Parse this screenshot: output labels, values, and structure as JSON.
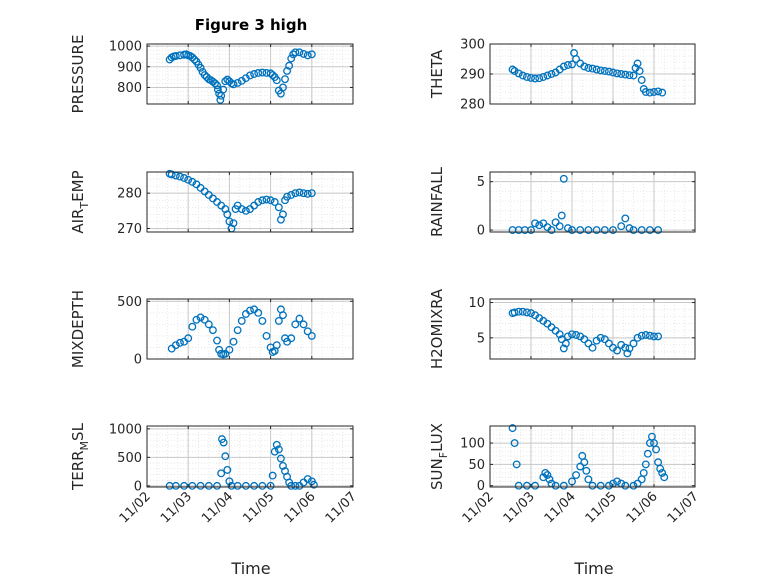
{
  "figure": {
    "title": "Figure 3 high",
    "xlabel": "Time"
  },
  "colors": {
    "marker": "#0072bd",
    "axis": "#262626",
    "grid": "#c8c8c8"
  },
  "xaxis": {
    "ticks": [
      "11/02",
      "11/03",
      "11/04",
      "11/05",
      "11/06",
      "11/07"
    ],
    "xlim": [
      0,
      5
    ]
  },
  "chart_data": [
    {
      "type": "scatter",
      "title": "Figure 3 high",
      "ylabel": "PRESSURE",
      "ylabel_sub": "",
      "ylabel_suffix": "",
      "ylim": [
        720,
        1010
      ],
      "yticks": [
        800,
        900,
        1000
      ],
      "grid": true,
      "points": [
        [
          0.55,
          935
        ],
        [
          0.6,
          945
        ],
        [
          0.65,
          950
        ],
        [
          0.7,
          952
        ],
        [
          0.8,
          955
        ],
        [
          0.9,
          958
        ],
        [
          0.95,
          960
        ],
        [
          1.0,
          955
        ],
        [
          1.05,
          952
        ],
        [
          1.1,
          945
        ],
        [
          1.15,
          935
        ],
        [
          1.2,
          925
        ],
        [
          1.25,
          910
        ],
        [
          1.3,
          895
        ],
        [
          1.35,
          875
        ],
        [
          1.4,
          860
        ],
        [
          1.45,
          850
        ],
        [
          1.5,
          840
        ],
        [
          1.55,
          835
        ],
        [
          1.6,
          828
        ],
        [
          1.65,
          820
        ],
        [
          1.7,
          810
        ],
        [
          1.72,
          790
        ],
        [
          1.75,
          770
        ],
        [
          1.78,
          740
        ],
        [
          1.8,
          760
        ],
        [
          1.85,
          790
        ],
        [
          1.9,
          830
        ],
        [
          1.95,
          838
        ],
        [
          2.0,
          830
        ],
        [
          2.05,
          820
        ],
        [
          2.1,
          815
        ],
        [
          2.2,
          822
        ],
        [
          2.3,
          832
        ],
        [
          2.4,
          845
        ],
        [
          2.5,
          858
        ],
        [
          2.6,
          865
        ],
        [
          2.7,
          870
        ],
        [
          2.8,
          872
        ],
        [
          2.9,
          870
        ],
        [
          3.0,
          868
        ],
        [
          3.05,
          860
        ],
        [
          3.1,
          850
        ],
        [
          3.15,
          835
        ],
        [
          3.2,
          785
        ],
        [
          3.25,
          770
        ],
        [
          3.3,
          800
        ],
        [
          3.35,
          840
        ],
        [
          3.4,
          880
        ],
        [
          3.45,
          905
        ],
        [
          3.5,
          940
        ],
        [
          3.55,
          960
        ],
        [
          3.6,
          970
        ],
        [
          3.7,
          970
        ],
        [
          3.8,
          962
        ],
        [
          3.9,
          955
        ],
        [
          4.0,
          960
        ]
      ]
    },
    {
      "type": "scatter",
      "ylabel": "THETA",
      "ylabel_sub": "",
      "ylabel_suffix": "",
      "ylim": [
        280,
        300
      ],
      "yticks": [
        280,
        290,
        300
      ],
      "grid": true,
      "points": [
        [
          0.55,
          291.5
        ],
        [
          0.6,
          291
        ],
        [
          0.7,
          290.2
        ],
        [
          0.8,
          289.5
        ],
        [
          0.9,
          289
        ],
        [
          1.0,
          288.7
        ],
        [
          1.1,
          288.5
        ],
        [
          1.2,
          288.6
        ],
        [
          1.3,
          289
        ],
        [
          1.4,
          289.5
        ],
        [
          1.5,
          290
        ],
        [
          1.6,
          290.5
        ],
        [
          1.7,
          291.5
        ],
        [
          1.8,
          292.5
        ],
        [
          1.9,
          293
        ],
        [
          2.0,
          293.2
        ],
        [
          2.05,
          297
        ],
        [
          2.1,
          295
        ],
        [
          2.2,
          293.5
        ],
        [
          2.3,
          292.5
        ],
        [
          2.4,
          292
        ],
        [
          2.5,
          291.8
        ],
        [
          2.6,
          291.5
        ],
        [
          2.7,
          291.2
        ],
        [
          2.8,
          291
        ],
        [
          2.9,
          290.8
        ],
        [
          3.0,
          290.5
        ],
        [
          3.1,
          290.2
        ],
        [
          3.2,
          290
        ],
        [
          3.3,
          289.8
        ],
        [
          3.4,
          289.6
        ],
        [
          3.5,
          289.5
        ],
        [
          3.55,
          292
        ],
        [
          3.6,
          293.5
        ],
        [
          3.65,
          291
        ],
        [
          3.7,
          288
        ],
        [
          3.75,
          285
        ],
        [
          3.8,
          284
        ],
        [
          3.9,
          283.8
        ],
        [
          4.0,
          284
        ],
        [
          4.1,
          284.2
        ],
        [
          4.2,
          283.8
        ]
      ]
    },
    {
      "type": "scatter",
      "ylabel": "AIR",
      "ylabel_sub": "T",
      "ylabel_suffix": "EMP",
      "ylim": [
        269,
        286
      ],
      "yticks": [
        270,
        280
      ],
      "grid": true,
      "points": [
        [
          0.55,
          285.5
        ],
        [
          0.6,
          285.3
        ],
        [
          0.7,
          285
        ],
        [
          0.8,
          284.7
        ],
        [
          0.9,
          284.3
        ],
        [
          1.0,
          283.8
        ],
        [
          1.1,
          283.2
        ],
        [
          1.2,
          282.5
        ],
        [
          1.3,
          281.5
        ],
        [
          1.4,
          280.5
        ],
        [
          1.5,
          279.5
        ],
        [
          1.6,
          278.5
        ],
        [
          1.7,
          277.5
        ],
        [
          1.8,
          276.5
        ],
        [
          1.9,
          275.5
        ],
        [
          1.95,
          274
        ],
        [
          2.0,
          272
        ],
        [
          2.05,
          270
        ],
        [
          2.1,
          271.5
        ],
        [
          2.15,
          275.5
        ],
        [
          2.2,
          276.5
        ],
        [
          2.3,
          275.5
        ],
        [
          2.4,
          275
        ],
        [
          2.5,
          275.5
        ],
        [
          2.6,
          276.5
        ],
        [
          2.7,
          277.5
        ],
        [
          2.8,
          278
        ],
        [
          2.9,
          278.2
        ],
        [
          3.0,
          278
        ],
        [
          3.1,
          277.5
        ],
        [
          3.2,
          276
        ],
        [
          3.25,
          272.5
        ],
        [
          3.3,
          274
        ],
        [
          3.35,
          278
        ],
        [
          3.4,
          279
        ],
        [
          3.5,
          279.5
        ],
        [
          3.6,
          280
        ],
        [
          3.7,
          280.2
        ],
        [
          3.8,
          280
        ],
        [
          3.9,
          279.8
        ],
        [
          4.0,
          280
        ]
      ]
    },
    {
      "type": "scatter",
      "ylabel": "RAINFALL",
      "ylabel_sub": "",
      "ylabel_suffix": "",
      "ylim": [
        -0.2,
        6
      ],
      "yticks": [
        0,
        5
      ],
      "grid": true,
      "points": [
        [
          0.55,
          0
        ],
        [
          0.7,
          0
        ],
        [
          0.85,
          0
        ],
        [
          1.0,
          0
        ],
        [
          1.1,
          0.7
        ],
        [
          1.2,
          0.5
        ],
        [
          1.3,
          0.7
        ],
        [
          1.4,
          0.3
        ],
        [
          1.5,
          0
        ],
        [
          1.6,
          0.8
        ],
        [
          1.7,
          0.4
        ],
        [
          1.75,
          1.5
        ],
        [
          1.8,
          5.3
        ],
        [
          1.9,
          0.2
        ],
        [
          2.0,
          0
        ],
        [
          2.2,
          0
        ],
        [
          2.4,
          0
        ],
        [
          2.6,
          0
        ],
        [
          2.8,
          0
        ],
        [
          3.0,
          0
        ],
        [
          3.2,
          0.4
        ],
        [
          3.3,
          1.2
        ],
        [
          3.4,
          0.2
        ],
        [
          3.5,
          0
        ],
        [
          3.7,
          0
        ],
        [
          3.9,
          0
        ],
        [
          4.1,
          0
        ]
      ]
    },
    {
      "type": "scatter",
      "ylabel": "MIXDEPTH",
      "ylabel_sub": "",
      "ylabel_suffix": "",
      "ylim": [
        0,
        520
      ],
      "yticks": [
        0,
        500
      ],
      "grid": true,
      "points": [
        [
          0.6,
          90
        ],
        [
          0.7,
          120
        ],
        [
          0.8,
          140
        ],
        [
          0.9,
          150
        ],
        [
          1.0,
          180
        ],
        [
          1.1,
          280
        ],
        [
          1.2,
          340
        ],
        [
          1.3,
          360
        ],
        [
          1.4,
          340
        ],
        [
          1.5,
          300
        ],
        [
          1.6,
          250
        ],
        [
          1.7,
          160
        ],
        [
          1.75,
          80
        ],
        [
          1.8,
          45
        ],
        [
          1.85,
          40
        ],
        [
          1.9,
          45
        ],
        [
          2.0,
          80
        ],
        [
          2.1,
          150
        ],
        [
          2.2,
          250
        ],
        [
          2.3,
          330
        ],
        [
          2.4,
          390
        ],
        [
          2.5,
          420
        ],
        [
          2.6,
          430
        ],
        [
          2.7,
          400
        ],
        [
          2.8,
          330
        ],
        [
          2.9,
          200
        ],
        [
          3.0,
          100
        ],
        [
          3.05,
          60
        ],
        [
          3.1,
          70
        ],
        [
          3.15,
          120
        ],
        [
          3.2,
          330
        ],
        [
          3.25,
          430
        ],
        [
          3.3,
          380
        ],
        [
          3.35,
          180
        ],
        [
          3.4,
          150
        ],
        [
          3.5,
          180
        ],
        [
          3.6,
          300
        ],
        [
          3.7,
          350
        ],
        [
          3.8,
          300
        ],
        [
          3.9,
          240
        ],
        [
          4.0,
          200
        ]
      ]
    },
    {
      "type": "scatter",
      "ylabel": "H2OMIXRA",
      "ylabel_sub": "",
      "ylabel_suffix": "",
      "ylim": [
        2,
        10.5
      ],
      "yticks": [
        5,
        10
      ],
      "grid": true,
      "points": [
        [
          0.55,
          8.5
        ],
        [
          0.6,
          8.6
        ],
        [
          0.7,
          8.7
        ],
        [
          0.8,
          8.7
        ],
        [
          0.9,
          8.6
        ],
        [
          1.0,
          8.5
        ],
        [
          1.1,
          8.2
        ],
        [
          1.2,
          7.8
        ],
        [
          1.3,
          7.4
        ],
        [
          1.4,
          7
        ],
        [
          1.5,
          6.5
        ],
        [
          1.6,
          6
        ],
        [
          1.7,
          5.5
        ],
        [
          1.75,
          4.8
        ],
        [
          1.8,
          3.5
        ],
        [
          1.85,
          4.2
        ],
        [
          1.9,
          5.2
        ],
        [
          2.0,
          5.5
        ],
        [
          2.1,
          5.4
        ],
        [
          2.2,
          5.2
        ],
        [
          2.3,
          4.8
        ],
        [
          2.4,
          4.2
        ],
        [
          2.5,
          3.6
        ],
        [
          2.6,
          4.6
        ],
        [
          2.7,
          5
        ],
        [
          2.8,
          4.8
        ],
        [
          2.9,
          4.2
        ],
        [
          3.0,
          3.6
        ],
        [
          3.1,
          3.2
        ],
        [
          3.2,
          4
        ],
        [
          3.3,
          3.6
        ],
        [
          3.35,
          2.8
        ],
        [
          3.4,
          3.5
        ],
        [
          3.5,
          4.2
        ],
        [
          3.6,
          5
        ],
        [
          3.7,
          5.3
        ],
        [
          3.8,
          5.4
        ],
        [
          3.9,
          5.3
        ],
        [
          4.0,
          5.2
        ],
        [
          4.1,
          5.2
        ]
      ]
    },
    {
      "type": "scatter",
      "ylabel": "TERR",
      "ylabel_sub": "M",
      "ylabel_suffix": "SL",
      "ylim": [
        -20,
        1050
      ],
      "yticks": [
        0,
        500,
        1000
      ],
      "grid": true,
      "points": [
        [
          0.55,
          0
        ],
        [
          0.7,
          0
        ],
        [
          0.9,
          0
        ],
        [
          1.1,
          0
        ],
        [
          1.3,
          0
        ],
        [
          1.5,
          0
        ],
        [
          1.7,
          0
        ],
        [
          1.8,
          220
        ],
        [
          1.82,
          820
        ],
        [
          1.86,
          760
        ],
        [
          1.9,
          520
        ],
        [
          1.95,
          280
        ],
        [
          2.0,
          80
        ],
        [
          2.05,
          0
        ],
        [
          2.2,
          0
        ],
        [
          2.4,
          0
        ],
        [
          2.6,
          0
        ],
        [
          2.8,
          0
        ],
        [
          3.0,
          0
        ],
        [
          3.05,
          180
        ],
        [
          3.1,
          600
        ],
        [
          3.15,
          720
        ],
        [
          3.2,
          640
        ],
        [
          3.25,
          480
        ],
        [
          3.3,
          350
        ],
        [
          3.35,
          260
        ],
        [
          3.4,
          160
        ],
        [
          3.45,
          60
        ],
        [
          3.5,
          0
        ],
        [
          3.6,
          0
        ],
        [
          3.7,
          0
        ],
        [
          3.8,
          60
        ],
        [
          3.9,
          120
        ],
        [
          4.0,
          80
        ],
        [
          4.05,
          20
        ]
      ]
    },
    {
      "type": "scatter",
      "ylabel": "SUN",
      "ylabel_sub": "F",
      "ylabel_suffix": "LUX",
      "ylim": [
        -3,
        140
      ],
      "yticks": [
        0,
        50,
        100
      ],
      "grid": true,
      "points": [
        [
          0.55,
          135
        ],
        [
          0.6,
          100
        ],
        [
          0.65,
          50
        ],
        [
          0.7,
          0
        ],
        [
          0.9,
          0
        ],
        [
          1.1,
          0
        ],
        [
          1.3,
          20
        ],
        [
          1.35,
          30
        ],
        [
          1.4,
          25
        ],
        [
          1.45,
          15
        ],
        [
          1.5,
          5
        ],
        [
          1.6,
          0
        ],
        [
          1.8,
          0
        ],
        [
          2.0,
          10
        ],
        [
          2.1,
          25
        ],
        [
          2.2,
          45
        ],
        [
          2.25,
          70
        ],
        [
          2.3,
          55
        ],
        [
          2.35,
          35
        ],
        [
          2.4,
          15
        ],
        [
          2.5,
          0
        ],
        [
          2.7,
          0
        ],
        [
          2.9,
          0
        ],
        [
          3.0,
          5
        ],
        [
          3.1,
          10
        ],
        [
          3.2,
          5
        ],
        [
          3.3,
          0
        ],
        [
          3.5,
          0
        ],
        [
          3.6,
          5
        ],
        [
          3.7,
          15
        ],
        [
          3.75,
          30
        ],
        [
          3.8,
          50
        ],
        [
          3.85,
          75
        ],
        [
          3.9,
          100
        ],
        [
          3.95,
          115
        ],
        [
          4.0,
          100
        ],
        [
          4.05,
          85
        ],
        [
          4.1,
          55
        ],
        [
          4.15,
          40
        ],
        [
          4.2,
          30
        ],
        [
          4.25,
          20
        ]
      ]
    }
  ]
}
